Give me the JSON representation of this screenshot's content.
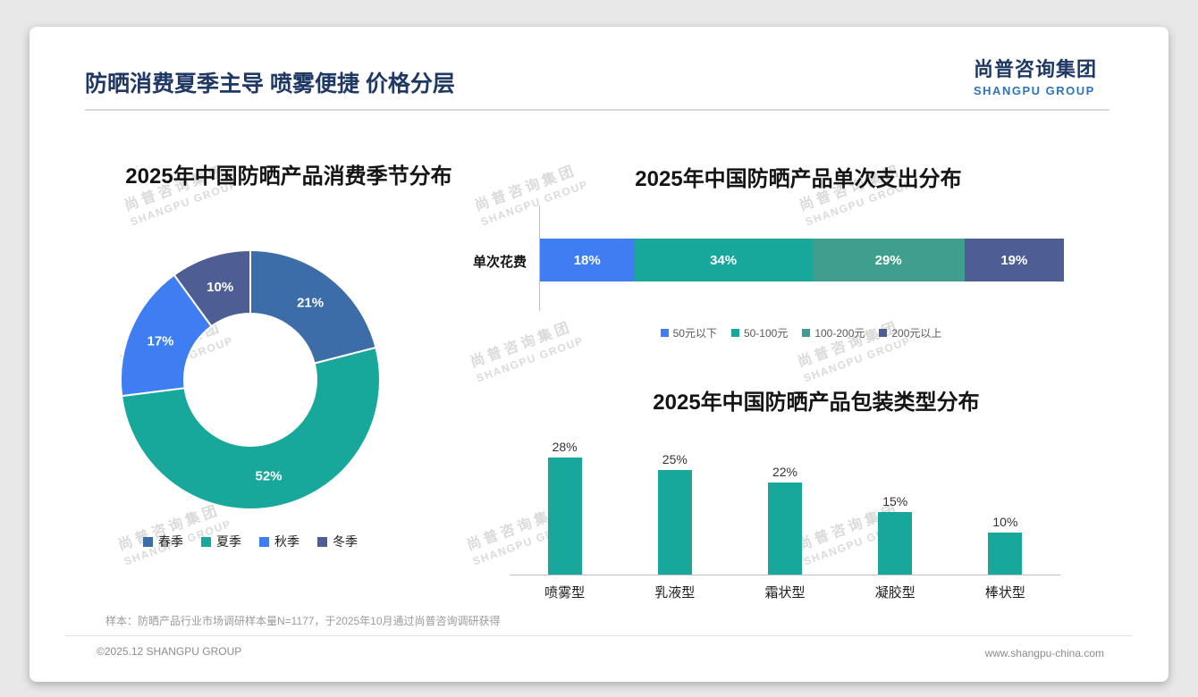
{
  "slide": {
    "title": "防晒消费夏季主导 喷雾便捷 价格分层",
    "logo_cn": "尚普咨询集团",
    "logo_en": "SHANGPU GROUP",
    "watermark_cn": "尚普咨询集团",
    "watermark_en": "SHANGPU GROUP",
    "footnote": "样本：防晒产品行业市场调研样本量N=1177，于2025年10月通过尚普咨询调研获得",
    "footer_left": "©2025.12 SHANGPU GROUP",
    "footer_right": "www.shangpu-china.com"
  },
  "colors": {
    "title_navy": "#1f3864",
    "logo_blue": "#2e74b5",
    "teal": "#17a89b",
    "dark_blue": "#3d6da8",
    "bright_blue": "#3e7ef2",
    "green_teal": "#3f9e8d",
    "slate_blue": "#4e5e95"
  },
  "chart_data": [
    {
      "type": "pie",
      "subtype": "donut",
      "title": "2025年中国防晒产品消费季节分布",
      "labels": [
        "春季",
        "夏季",
        "秋季",
        "冬季"
      ],
      "values": [
        21,
        52,
        17,
        10
      ],
      "unit": "%",
      "colors": [
        "#3d6da8",
        "#17a89b",
        "#3e7ef2",
        "#4e5e95"
      ],
      "legend_position": "bottom"
    },
    {
      "type": "bar",
      "subtype": "horizontal-stacked",
      "title": "2025年中国防晒产品单次支出分布",
      "category": "单次花费",
      "unit": "%",
      "series": [
        {
          "name": "50元以下",
          "value": 18,
          "color": "#3e7ef2"
        },
        {
          "name": "50-100元",
          "value": 34,
          "color": "#17a89b"
        },
        {
          "name": "100-200元",
          "value": 29,
          "color": "#3f9e8d"
        },
        {
          "name": "200元以上",
          "value": 19,
          "color": "#4e5e95"
        }
      ],
      "legend_position": "bottom"
    },
    {
      "type": "bar",
      "subtype": "vertical",
      "title": "2025年中国防晒产品包装类型分布",
      "categories": [
        "喷雾型",
        "乳液型",
        "霜状型",
        "凝胶型",
        "棒状型"
      ],
      "values": [
        28,
        25,
        22,
        15,
        10
      ],
      "unit": "%",
      "color": "#17a89b",
      "ylim": [
        0,
        32
      ],
      "grid": false
    }
  ]
}
